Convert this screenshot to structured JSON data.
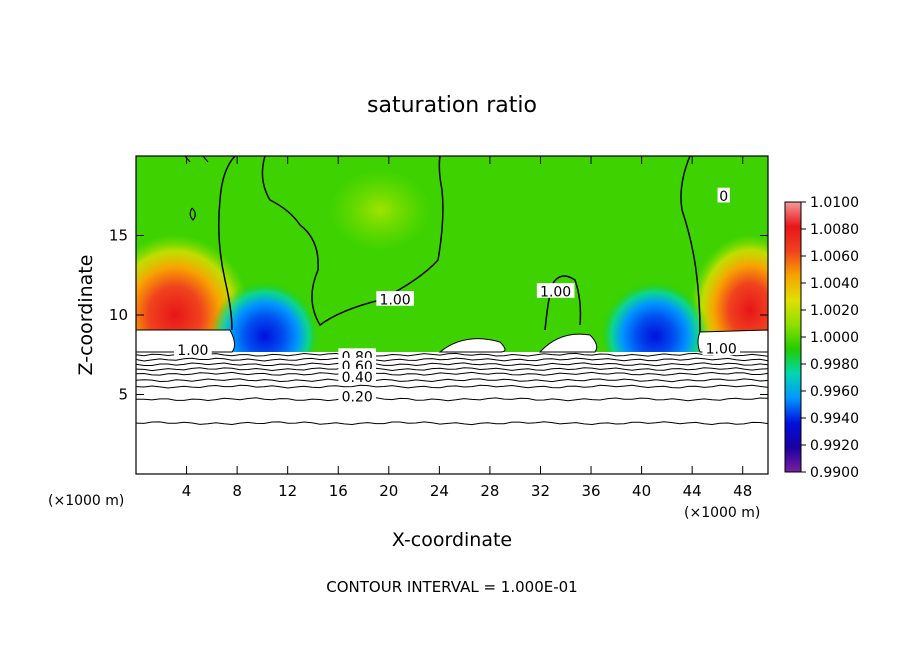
{
  "chart_data": {
    "type": "heatmap",
    "title": "saturation ratio",
    "xlabel": "X-coordinate",
    "ylabel": "Z-coordinate",
    "x_unit_left": "(×1000 m)",
    "x_unit_right": "(×1000 m)",
    "footer": "CONTOUR INTERVAL = 1.000E-01",
    "xlim": [
      0,
      50
    ],
    "ylim": [
      0,
      20
    ],
    "x_ticks": [
      4,
      8,
      12,
      16,
      20,
      24,
      28,
      32,
      36,
      40,
      44,
      48
    ],
    "x_tick_labels": [
      "4",
      "8",
      "12",
      "16",
      "20",
      "24",
      "28",
      "32",
      "36",
      "40",
      "44",
      "48"
    ],
    "y_ticks": [
      5,
      10,
      15
    ],
    "y_tick_labels": [
      "5",
      "10",
      "15"
    ],
    "colorbar": {
      "min": 0.99,
      "max": 1.01,
      "labels": [
        "1.0100",
        "1.0080",
        "1.0060",
        "1.0040",
        "1.0020",
        "1.0000",
        "0.9980",
        "0.9960",
        "0.9940",
        "0.9920",
        "0.9900"
      ],
      "colors": [
        "#f49a9a",
        "#e8151a",
        "#f0421e",
        "#f7a400",
        "#e0e000",
        "#8ee000",
        "#22cc00",
        "#00d7b0",
        "#0096ff",
        "#0010dd",
        "#1a00a0",
        "#7a1f9e"
      ]
    },
    "contour_labels": [
      {
        "text": "1.00",
        "x": 20.5,
        "z": 10.8
      },
      {
        "text": "1.00",
        "x": 33.2,
        "z": 11.3
      },
      {
        "text": "0",
        "x": 46.5,
        "z": 17.3
      },
      {
        "text": "1.00",
        "x": 4.5,
        "z": 7.6
      },
      {
        "text": "1.00",
        "x": 46.3,
        "z": 7.7
      },
      {
        "text": "0.80",
        "x": 17.5,
        "z": 7.2
      },
      {
        "text": "0.60",
        "x": 17.5,
        "z": 6.6
      },
      {
        "text": "0.40",
        "x": 17.5,
        "z": 5.9
      },
      {
        "text": "0.20",
        "x": 17.5,
        "z": 4.7
      }
    ],
    "contour_levels_z": [
      3.2,
      4.7,
      5.5,
      5.9,
      6.3,
      6.6,
      6.9,
      7.2,
      7.5
    ]
  }
}
